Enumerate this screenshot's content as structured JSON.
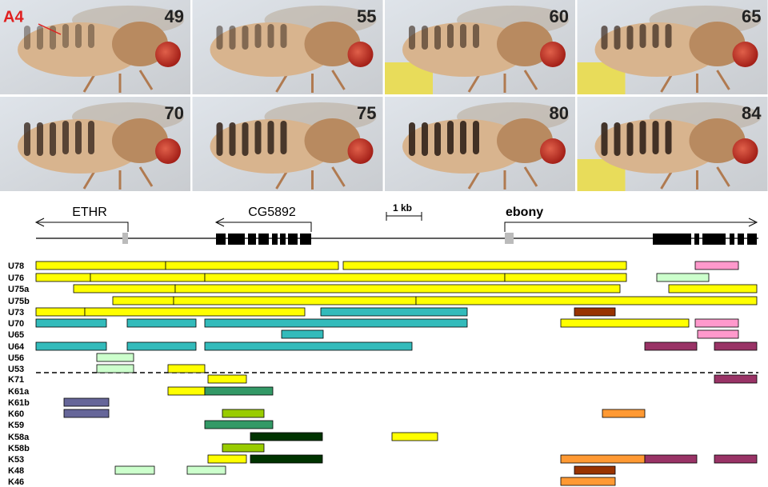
{
  "photos": {
    "marker": "A4",
    "ages": [
      49,
      55,
      60,
      65,
      70,
      75,
      80,
      84
    ]
  },
  "gene_map": {
    "genes": [
      "ETHR",
      "CG5892",
      "ebony"
    ],
    "scale": "1 kb"
  },
  "rows": [
    "U78",
    "U76",
    "U75a",
    "U75b",
    "U73",
    "U70",
    "U65",
    "U64",
    "U56",
    "U53",
    "K71",
    "K61a",
    "K61b",
    "K60",
    "K59",
    "K58a",
    "K58b",
    "K53",
    "K48",
    "K46"
  ]
}
